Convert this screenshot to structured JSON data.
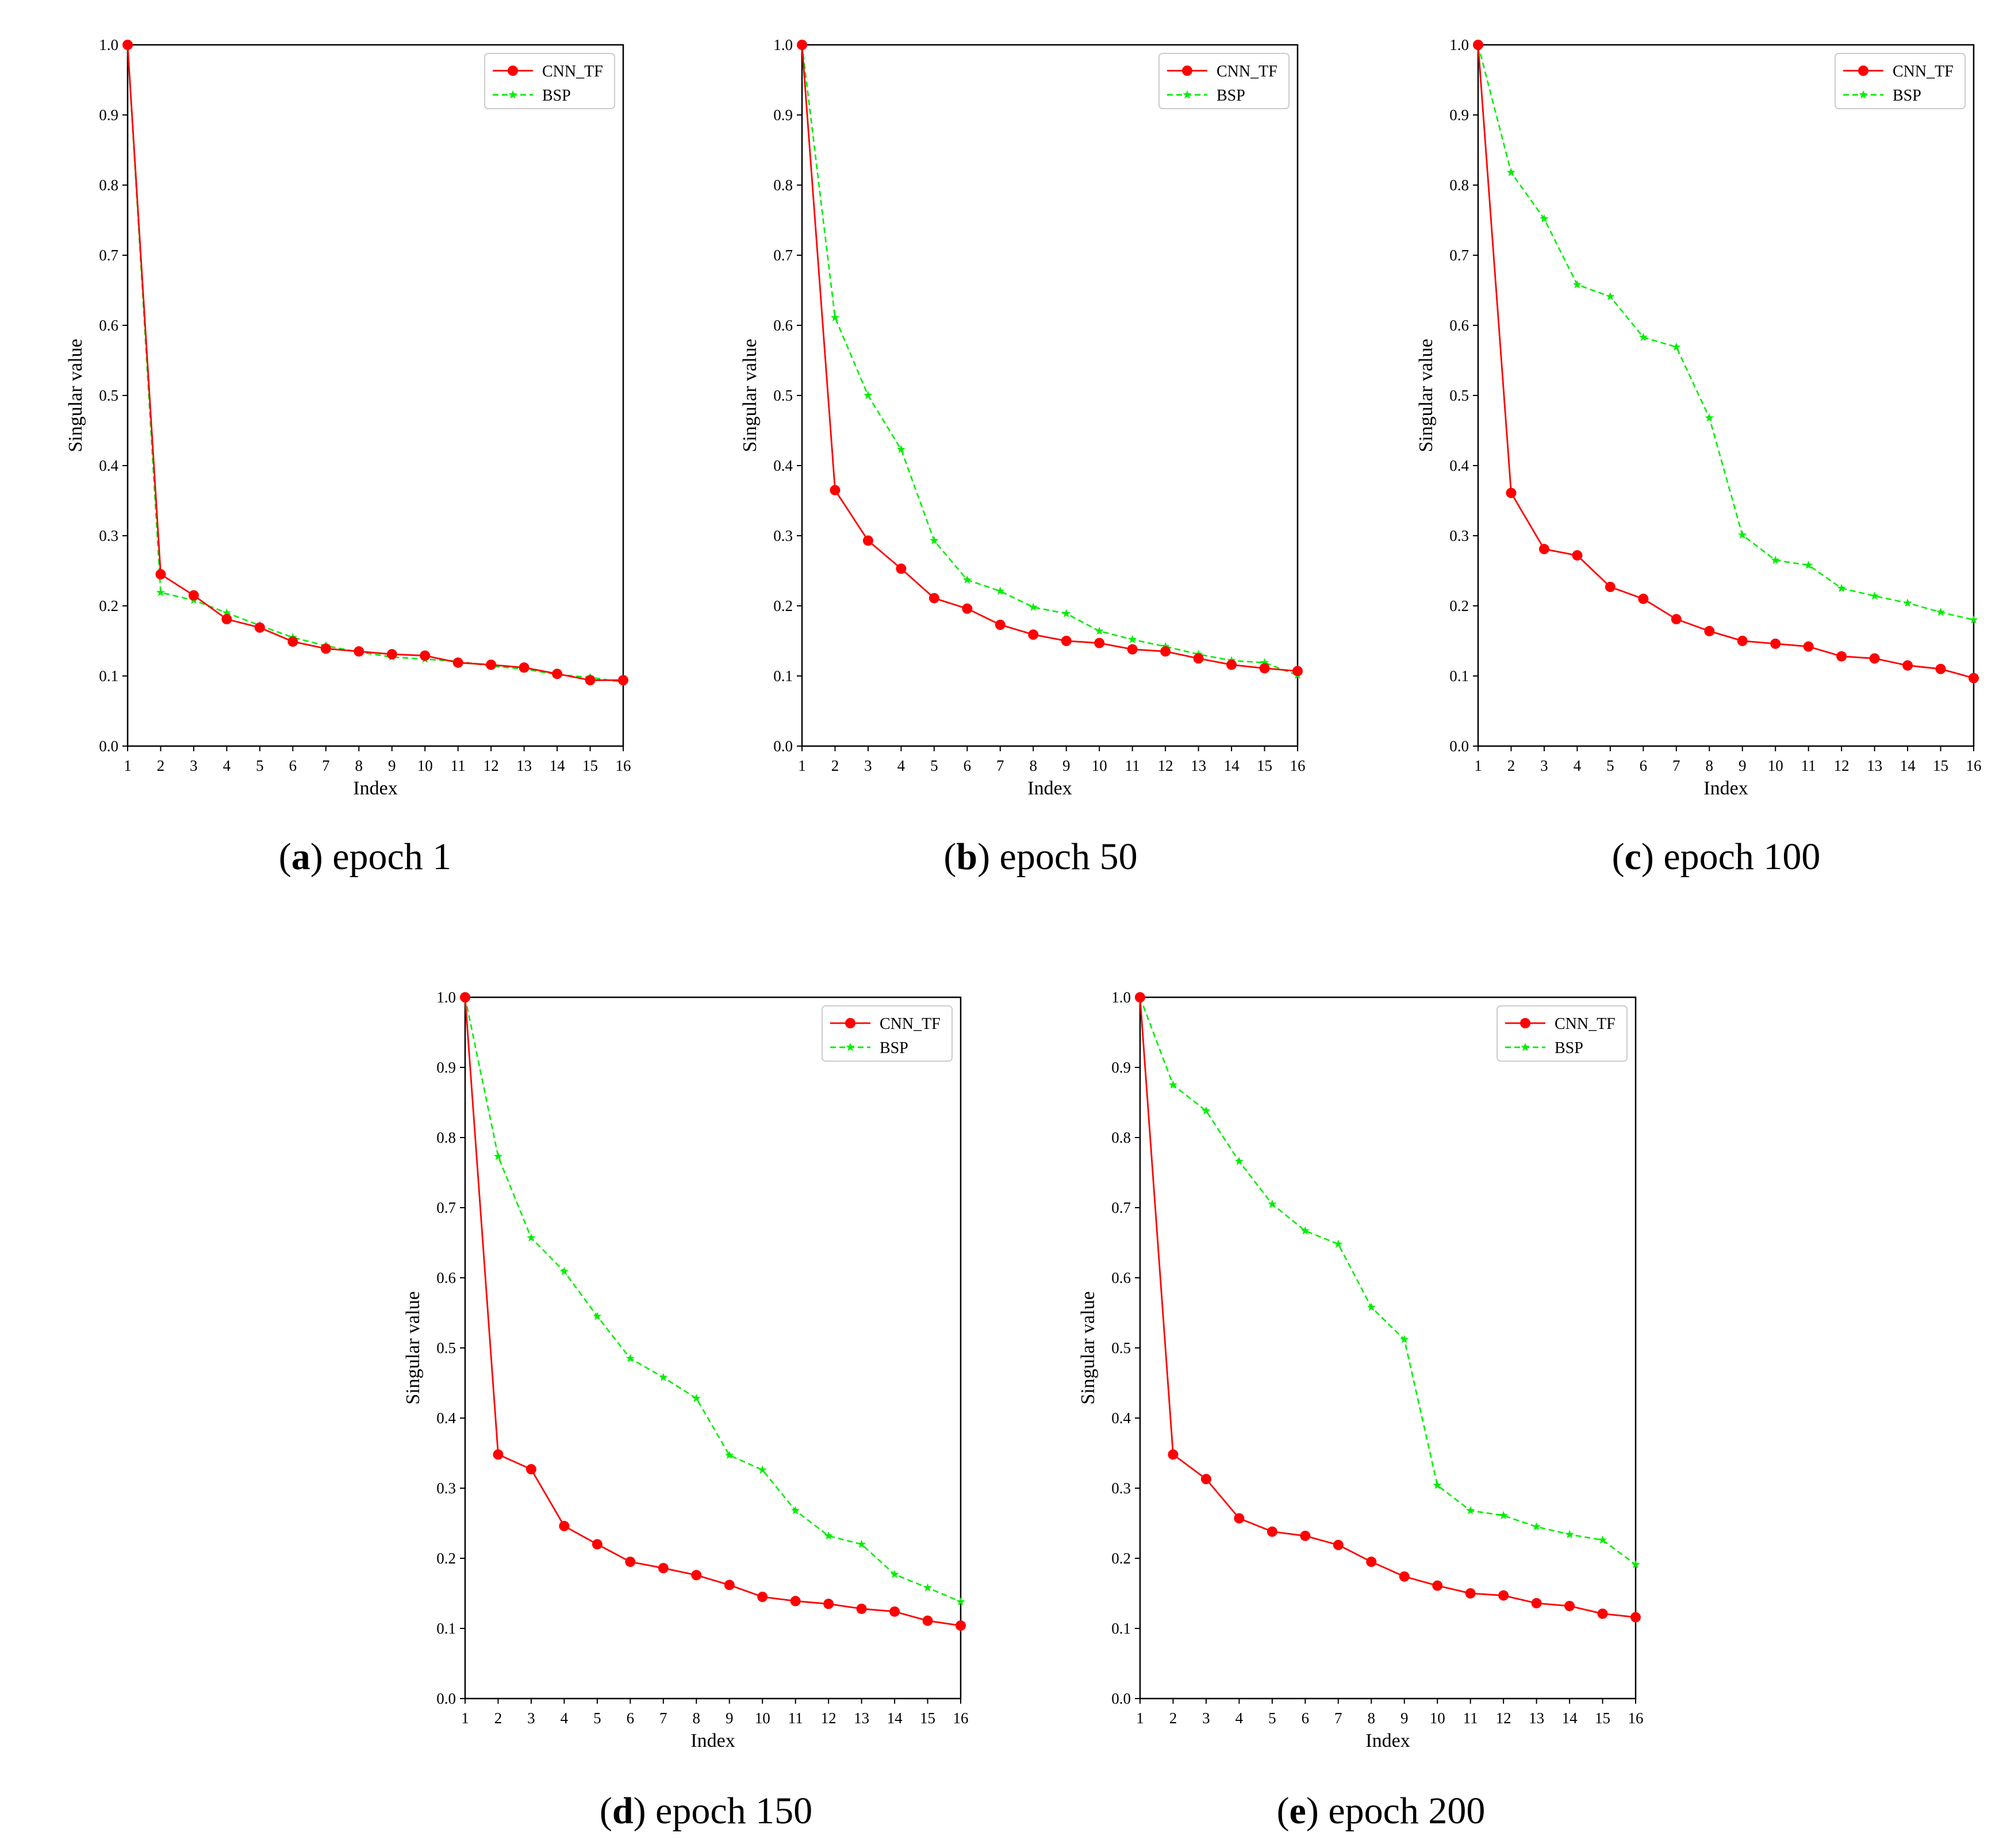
{
  "colors": {
    "cnn": "#ff0000",
    "bsp": "#00ee00",
    "axis": "#000000"
  },
  "chart_data": [
    {
      "type": "line",
      "panel_letter": "a",
      "caption": "epoch 1",
      "xlabel": "Index",
      "ylabel": "Singular value",
      "xlim": [
        1,
        16
      ],
      "ylim": [
        0,
        1
      ],
      "xticks": [
        "1",
        "2",
        "3",
        "4",
        "5",
        "6",
        "7",
        "8",
        "9",
        "10",
        "11",
        "12",
        "13",
        "14",
        "15",
        "16"
      ],
      "yticks": [
        "0.0",
        "0.1",
        "0.2",
        "0.3",
        "0.4",
        "0.5",
        "0.6",
        "0.7",
        "0.8",
        "0.9",
        "1.0"
      ],
      "legend_position": "top-right",
      "x": [
        1,
        2,
        3,
        4,
        5,
        6,
        7,
        8,
        9,
        10,
        11,
        12,
        13,
        14,
        15,
        16
      ],
      "series": [
        {
          "name": "CNN_TF",
          "marker": "circle",
          "line": "solid",
          "values": [
            1.0,
            0.245,
            0.215,
            0.181,
            0.169,
            0.149,
            0.139,
            0.135,
            0.131,
            0.129,
            0.119,
            0.116,
            0.112,
            0.103,
            0.094,
            0.094
          ]
        },
        {
          "name": "BSP",
          "marker": "star",
          "line": "dashed",
          "values": [
            1.0,
            0.219,
            0.208,
            0.19,
            0.172,
            0.155,
            0.143,
            0.134,
            0.127,
            0.124,
            0.121,
            0.114,
            0.11,
            0.102,
            0.098,
            0.091
          ]
        }
      ]
    },
    {
      "type": "line",
      "panel_letter": "b",
      "caption": "epoch 50",
      "xlabel": "Index",
      "ylabel": "Singular value",
      "xlim": [
        1,
        16
      ],
      "ylim": [
        0,
        1
      ],
      "xticks": [
        "1",
        "2",
        "3",
        "4",
        "5",
        "6",
        "7",
        "8",
        "9",
        "10",
        "11",
        "12",
        "13",
        "14",
        "15",
        "16"
      ],
      "yticks": [
        "0.0",
        "0.1",
        "0.2",
        "0.3",
        "0.4",
        "0.5",
        "0.6",
        "0.7",
        "0.8",
        "0.9",
        "1.0"
      ],
      "legend_position": "top-right",
      "x": [
        1,
        2,
        3,
        4,
        5,
        6,
        7,
        8,
        9,
        10,
        11,
        12,
        13,
        14,
        15,
        16
      ],
      "series": [
        {
          "name": "CNN_TF",
          "marker": "circle",
          "line": "solid",
          "values": [
            1.0,
            0.365,
            0.293,
            0.253,
            0.211,
            0.196,
            0.173,
            0.159,
            0.15,
            0.147,
            0.138,
            0.135,
            0.125,
            0.116,
            0.111,
            0.107
          ]
        },
        {
          "name": "BSP",
          "marker": "star",
          "line": "dashed",
          "values": [
            1.0,
            0.611,
            0.5,
            0.423,
            0.293,
            0.237,
            0.221,
            0.198,
            0.189,
            0.164,
            0.152,
            0.142,
            0.131,
            0.122,
            0.119,
            0.101
          ]
        }
      ]
    },
    {
      "type": "line",
      "panel_letter": "c",
      "caption": "epoch 100",
      "xlabel": "Index",
      "ylabel": "Singular value",
      "xlim": [
        1,
        16
      ],
      "ylim": [
        0,
        1
      ],
      "xticks": [
        "1",
        "2",
        "3",
        "4",
        "5",
        "6",
        "7",
        "8",
        "9",
        "10",
        "11",
        "12",
        "13",
        "14",
        "15",
        "16"
      ],
      "yticks": [
        "0.0",
        "0.1",
        "0.2",
        "0.3",
        "0.4",
        "0.5",
        "0.6",
        "0.7",
        "0.8",
        "0.9",
        "1.0"
      ],
      "legend_position": "top-right",
      "x": [
        1,
        2,
        3,
        4,
        5,
        6,
        7,
        8,
        9,
        10,
        11,
        12,
        13,
        14,
        15,
        16
      ],
      "series": [
        {
          "name": "CNN_TF",
          "marker": "circle",
          "line": "solid",
          "values": [
            1.0,
            0.361,
            0.281,
            0.272,
            0.227,
            0.21,
            0.181,
            0.164,
            0.15,
            0.146,
            0.142,
            0.128,
            0.125,
            0.115,
            0.11,
            0.097
          ]
        },
        {
          "name": "BSP",
          "marker": "star",
          "line": "dashed",
          "values": [
            1.0,
            0.818,
            0.752,
            0.658,
            0.641,
            0.583,
            0.569,
            0.468,
            0.301,
            0.265,
            0.258,
            0.225,
            0.214,
            0.204,
            0.191,
            0.18
          ]
        }
      ]
    },
    {
      "type": "line",
      "panel_letter": "d",
      "caption": "epoch 150",
      "xlabel": "Index",
      "ylabel": "Singular value",
      "xlim": [
        1,
        16
      ],
      "ylim": [
        0,
        1
      ],
      "xticks": [
        "1",
        "2",
        "3",
        "4",
        "5",
        "6",
        "7",
        "8",
        "9",
        "10",
        "11",
        "12",
        "13",
        "14",
        "15",
        "16"
      ],
      "yticks": [
        "0.0",
        "0.1",
        "0.2",
        "0.3",
        "0.4",
        "0.5",
        "0.6",
        "0.7",
        "0.8",
        "0.9",
        "1.0"
      ],
      "legend_position": "top-right",
      "x": [
        1,
        2,
        3,
        4,
        5,
        6,
        7,
        8,
        9,
        10,
        11,
        12,
        13,
        14,
        15,
        16
      ],
      "series": [
        {
          "name": "CNN_TF",
          "marker": "circle",
          "line": "solid",
          "values": [
            1.0,
            0.348,
            0.327,
            0.246,
            0.22,
            0.195,
            0.186,
            0.176,
            0.162,
            0.145,
            0.139,
            0.135,
            0.128,
            0.124,
            0.111,
            0.104
          ]
        },
        {
          "name": "BSP",
          "marker": "star",
          "line": "dashed",
          "values": [
            1.0,
            0.773,
            0.657,
            0.609,
            0.545,
            0.485,
            0.458,
            0.428,
            0.347,
            0.326,
            0.268,
            0.232,
            0.22,
            0.177,
            0.158,
            0.138
          ]
        }
      ]
    },
    {
      "type": "line",
      "panel_letter": "e",
      "caption": "epoch 200",
      "xlabel": "Index",
      "ylabel": "Singular value",
      "xlim": [
        1,
        16
      ],
      "ylim": [
        0,
        1
      ],
      "xticks": [
        "1",
        "2",
        "3",
        "4",
        "5",
        "6",
        "7",
        "8",
        "9",
        "10",
        "11",
        "12",
        "13",
        "14",
        "15",
        "16"
      ],
      "yticks": [
        "0.0",
        "0.1",
        "0.2",
        "0.3",
        "0.4",
        "0.5",
        "0.6",
        "0.7",
        "0.8",
        "0.9",
        "1.0"
      ],
      "legend_position": "top-right",
      "x": [
        1,
        2,
        3,
        4,
        5,
        6,
        7,
        8,
        9,
        10,
        11,
        12,
        13,
        14,
        15,
        16
      ],
      "series": [
        {
          "name": "CNN_TF",
          "marker": "circle",
          "line": "solid",
          "values": [
            1.0,
            0.348,
            0.313,
            0.257,
            0.238,
            0.232,
            0.219,
            0.195,
            0.174,
            0.161,
            0.15,
            0.147,
            0.136,
            0.132,
            0.121,
            0.116
          ]
        },
        {
          "name": "BSP",
          "marker": "star",
          "line": "dashed",
          "values": [
            1.0,
            0.875,
            0.838,
            0.766,
            0.705,
            0.667,
            0.648,
            0.558,
            0.512,
            0.304,
            0.268,
            0.261,
            0.245,
            0.234,
            0.226,
            0.191
          ]
        }
      ]
    }
  ]
}
